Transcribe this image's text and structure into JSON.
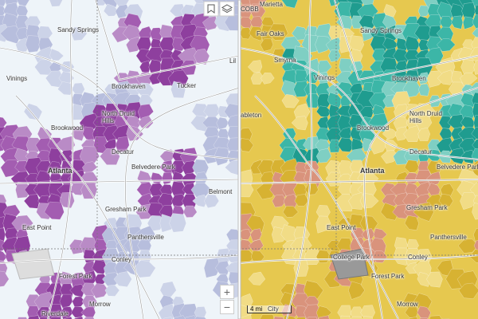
{
  "left_map": {
    "labels": [
      "Sandy Springs",
      "Vinings",
      "Brookhaven",
      "Tucker",
      "North Druid Hills",
      "Brookwood",
      "Decatur",
      "Atlanta",
      "Belvedere Park",
      "Belmont",
      "Gresham Park",
      "East Point",
      "Panthersville",
      "Conley",
      "Forest Park",
      "Morrow",
      "Riverdale",
      "Lil"
    ],
    "zoom_in": "+",
    "zoom_out": "−"
  },
  "right_map": {
    "labels": [
      "Marietta",
      "COBB",
      "Fair Oaks",
      "Sandy Springs",
      "Smyrna",
      "Vinings",
      "Brookhaven",
      "ableton",
      "North Druid Hills",
      "Brookwood",
      "Decatur",
      "Atlanta",
      "Belvedere Park",
      "Gresham Park",
      "East Point",
      "Panthersville",
      "College Park",
      "Conley",
      "Forest Park",
      "Morrow",
      "City"
    ],
    "scale_bar": "4 mi"
  }
}
